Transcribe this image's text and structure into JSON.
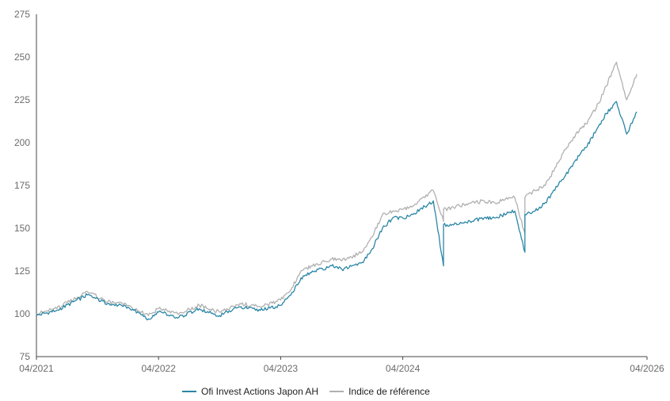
{
  "chart_data": {
    "type": "line",
    "title": "",
    "xlabel": "",
    "ylabel": "",
    "ylim": [
      75,
      275
    ],
    "yticks": [
      75,
      100,
      125,
      150,
      175,
      200,
      225,
      250,
      275
    ],
    "xlim": [
      "2021-04",
      "2026-04"
    ],
    "xticks": [
      "04/2021",
      "04/2022",
      "04/2023",
      "04/2024",
      "04/2026"
    ],
    "grid": false,
    "legend_position": "bottom-center",
    "series": [
      {
        "name": "Ofi Invest Actions Japon AH",
        "color": "#2a86a6",
        "x": [
          "2021-04",
          "2021-06",
          "2021-09",
          "2021-11",
          "2022-01",
          "2022-03",
          "2022-04",
          "2022-06",
          "2022-08",
          "2022-10",
          "2022-12",
          "2023-02",
          "2023-04",
          "2023-05",
          "2023-06",
          "2023-07",
          "2023-09",
          "2023-10",
          "2023-12",
          "2024-01",
          "2024-02",
          "2024-03",
          "2024-04",
          "2024-05",
          "2024-07",
          "2024-08",
          "2024-08",
          "2024-09",
          "2024-10",
          "2024-12",
          "2025-01",
          "2025-03",
          "2025-04",
          "2025-04",
          "2025-05",
          "2025-06",
          "2025-08",
          "2025-09",
          "2025-10",
          "2025-11",
          "2025-12",
          "2026-01",
          "2026-02",
          "2026-03"
        ],
        "values": [
          99,
          102,
          111,
          106,
          104,
          97,
          101,
          98,
          103,
          99,
          104,
          102,
          105,
          111,
          121,
          124,
          128,
          126,
          130,
          138,
          150,
          156,
          156,
          158,
          166,
          128,
          152,
          152,
          153,
          156,
          156,
          160,
          136,
          158,
          160,
          165,
          181,
          190,
          197,
          207,
          217,
          224,
          205,
          218
        ]
      },
      {
        "name": "Indice de référence",
        "color": "#b0b0b0",
        "x": [
          "2021-04",
          "2021-06",
          "2021-09",
          "2021-11",
          "2022-01",
          "2022-03",
          "2022-04",
          "2022-06",
          "2022-08",
          "2022-10",
          "2022-12",
          "2023-02",
          "2023-04",
          "2023-05",
          "2023-06",
          "2023-07",
          "2023-09",
          "2023-10",
          "2023-12",
          "2024-01",
          "2024-02",
          "2024-03",
          "2024-04",
          "2024-05",
          "2024-07",
          "2024-08",
          "2024-08",
          "2024-09",
          "2024-10",
          "2024-12",
          "2025-01",
          "2025-03",
          "2025-04",
          "2025-04",
          "2025-05",
          "2025-06",
          "2025-08",
          "2025-09",
          "2025-10",
          "2025-11",
          "2025-12",
          "2026-01",
          "2026-02",
          "2026-03"
        ],
        "values": [
          100,
          103,
          113,
          107,
          105,
          99,
          103,
          100,
          105,
          101,
          106,
          104,
          108,
          114,
          125,
          128,
          132,
          131,
          136,
          145,
          158,
          160,
          161,
          163,
          172,
          154,
          161,
          162,
          164,
          166,
          165,
          168,
          147,
          168,
          172,
          175,
          196,
          205,
          211,
          220,
          233,
          247,
          225,
          240
        ]
      }
    ]
  }
}
